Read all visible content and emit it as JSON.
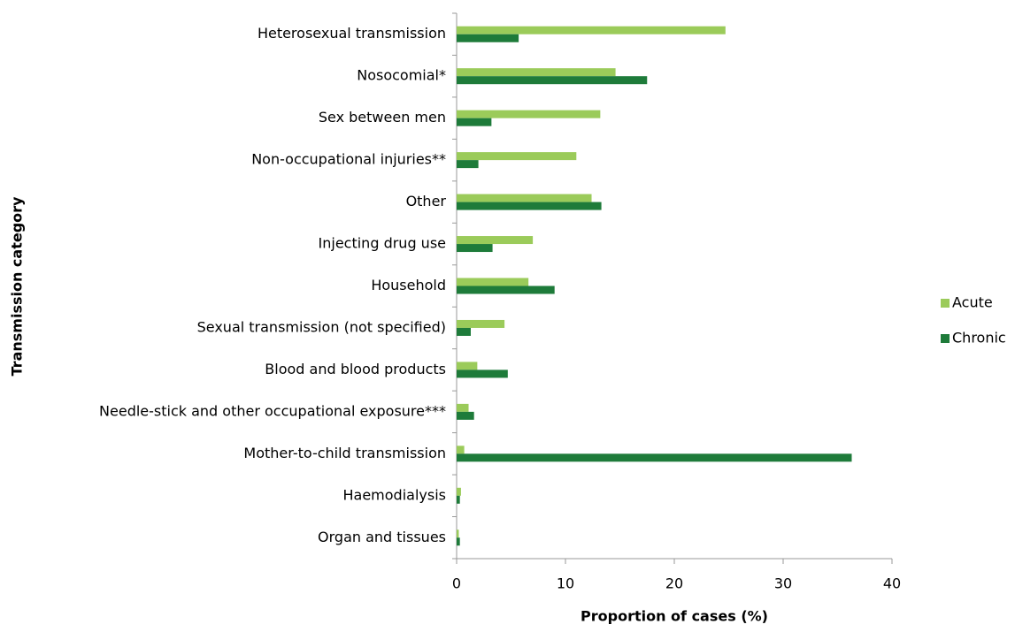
{
  "chart_data": {
    "type": "barh",
    "x_label": "Proportion of cases (%)",
    "y_label": "Transmission category",
    "categories": [
      "Heterosexual transmission",
      "Nosocomial*",
      "Sex between men",
      "Non-occupational injuries**",
      "Other",
      "Injecting drug use",
      "Household",
      "Sexual transmission (not specified)",
      "Blood and blood products",
      "Needle-stick and other occupational exposure***",
      "Mother-to-child transmission",
      "Haemodialysis",
      "Organ and tissues"
    ],
    "series": [
      {
        "name": "Acute",
        "color": "#9bcb5a",
        "values": [
          24.7,
          14.6,
          13.2,
          11.0,
          12.4,
          7.0,
          6.6,
          4.4,
          1.9,
          1.1,
          0.7,
          0.4,
          0.2
        ]
      },
      {
        "name": "Chronic",
        "color": "#1e7b3a",
        "values": [
          5.7,
          17.5,
          3.2,
          2.0,
          13.3,
          3.3,
          9.0,
          1.3,
          4.7,
          1.6,
          36.3,
          0.3,
          0.3
        ]
      }
    ],
    "xlim": [
      0,
      40
    ],
    "xticks": [
      0,
      10,
      20,
      30,
      40
    ],
    "grid": false,
    "legend": "right"
  }
}
